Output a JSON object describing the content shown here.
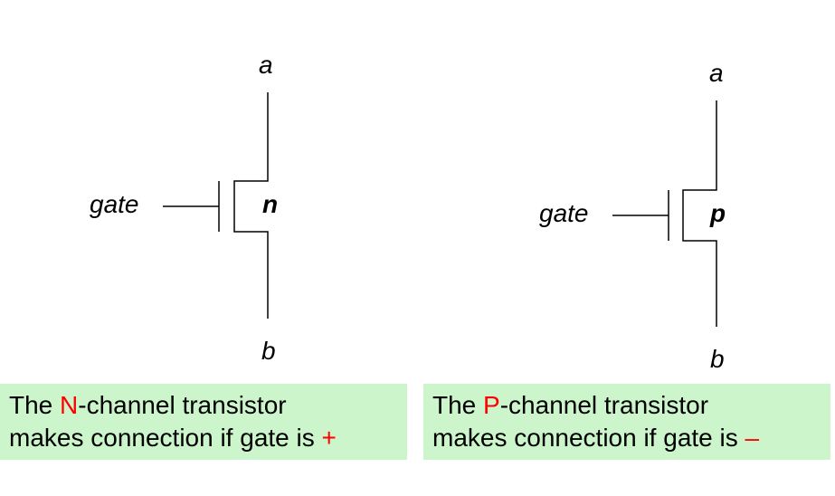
{
  "n_transistor": {
    "terminal_top": "a",
    "terminal_bottom": "b",
    "gate_label": "gate",
    "channel_label": "n"
  },
  "p_transistor": {
    "terminal_top": "a",
    "terminal_bottom": "b",
    "gate_label": "gate",
    "channel_label": "p"
  },
  "captions": {
    "left": {
      "pre": "The ",
      "highlight": "N",
      "line1_post": "-channel  transistor",
      "line2_pre": "makes connection if gate is ",
      "sign": "+"
    },
    "right": {
      "pre": "The ",
      "highlight": "P",
      "line1_post": "-channel  transistor",
      "line2_pre": "makes connection if gate is ",
      "sign": "–"
    }
  },
  "colors": {
    "highlight": "#ff0000",
    "caption_bg": "#ccf5cc",
    "wire": "#000000"
  }
}
